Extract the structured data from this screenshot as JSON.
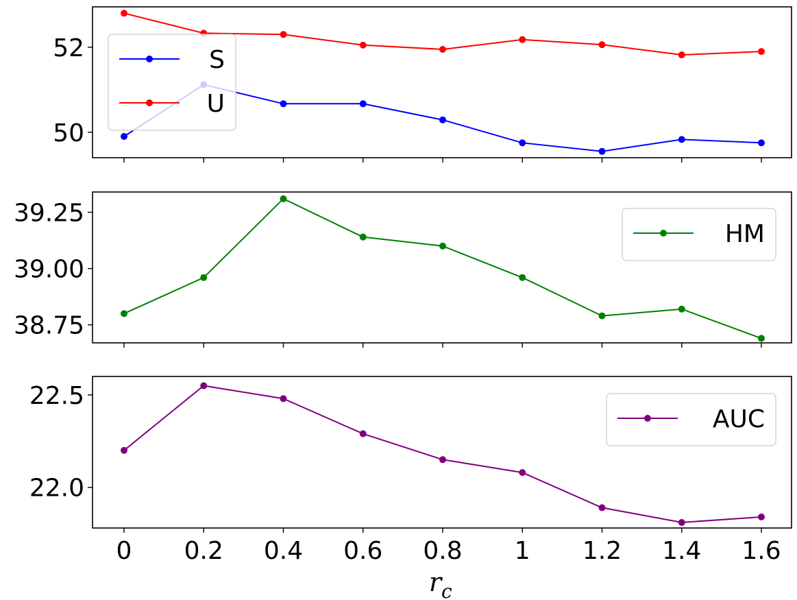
{
  "figure": {
    "x_tick_labels": [
      "0",
      "0.2",
      "0.4",
      "0.6",
      "0.8",
      "1",
      "1.2",
      "1.4",
      "1.6"
    ],
    "xlabel_main": "r",
    "xlabel_sub": "c"
  },
  "chart_data": [
    {
      "type": "line",
      "x": [
        0,
        0.2,
        0.4,
        0.6,
        0.8,
        1,
        1.2,
        1.4,
        1.6
      ],
      "ylim": [
        49.4,
        52.95
      ],
      "y_ticks": [
        50,
        52
      ],
      "y_tick_labels": [
        "50",
        "52"
      ],
      "grid": false,
      "legend_position": "upper-left",
      "series": [
        {
          "name": "S",
          "color": "#0000ff",
          "values": [
            49.9,
            51.12,
            50.67,
            50.67,
            50.29,
            49.75,
            49.55,
            49.83,
            49.75
          ]
        },
        {
          "name": "U",
          "color": "#ff0000",
          "values": [
            52.8,
            52.33,
            52.3,
            52.05,
            51.95,
            52.18,
            52.06,
            51.82,
            51.9
          ]
        }
      ]
    },
    {
      "type": "line",
      "x": [
        0,
        0.2,
        0.4,
        0.6,
        0.8,
        1,
        1.2,
        1.4,
        1.6
      ],
      "ylim": [
        38.67,
        39.34
      ],
      "y_ticks": [
        38.75,
        39.0,
        39.25
      ],
      "y_tick_labels": [
        "38.75",
        "39.00",
        "39.25"
      ],
      "grid": false,
      "legend_position": "upper-right",
      "series": [
        {
          "name": "HM",
          "color": "#008000",
          "values": [
            38.8,
            38.96,
            39.31,
            39.14,
            39.1,
            38.96,
            38.79,
            38.82,
            38.69
          ]
        }
      ]
    },
    {
      "type": "line",
      "x": [
        0,
        0.2,
        0.4,
        0.6,
        0.8,
        1,
        1.2,
        1.4,
        1.6
      ],
      "ylim": [
        21.78,
        22.6
      ],
      "y_ticks": [
        22.0,
        22.5
      ],
      "y_tick_labels": [
        "22.0",
        "22.5"
      ],
      "grid": false,
      "legend_position": "upper-right",
      "series": [
        {
          "name": "AUC",
          "color": "#800080",
          "values": [
            22.2,
            22.55,
            22.48,
            22.29,
            22.15,
            22.08,
            21.89,
            21.81,
            21.84
          ]
        }
      ]
    }
  ]
}
